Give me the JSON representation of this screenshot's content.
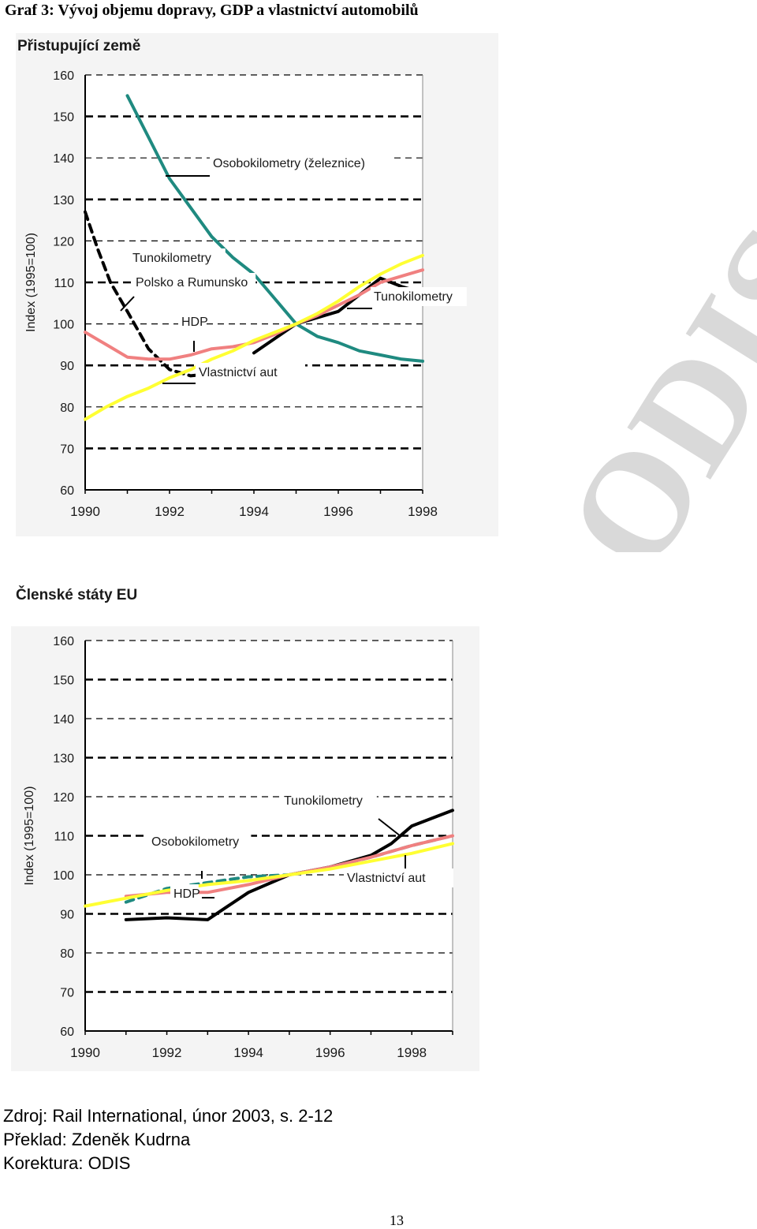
{
  "page": {
    "title": "Graf 3: Vývoj objemu dopravy, GDP a vlastnictví automobilů",
    "watermark": "ODIS",
    "source_lines": [
      "Zdroj: Rail International, únor 2003, s. 2-12",
      "Překlad: Zdeněk Kudrna",
      "Korektura: ODIS"
    ],
    "page_number": "13"
  },
  "chart_data": [
    {
      "type": "line",
      "title": "Přistupující země",
      "xlabel": "",
      "ylabel": "Index (1995=100)",
      "xlim": [
        1990,
        1998
      ],
      "ylim": [
        60,
        160
      ],
      "x_ticks": [
        "1990",
        "1992",
        "1994",
        "1996",
        "1998"
      ],
      "y_ticks": [
        "60",
        "70",
        "80",
        "90",
        "100",
        "110",
        "120",
        "130",
        "140",
        "150",
        "160"
      ],
      "grid": "dashed horizontal",
      "series": [
        {
          "name": "Osobokilometry (železnice)",
          "color": "#1f8a80",
          "dash": "solid",
          "x": [
            1991,
            1991.5,
            1992,
            1992.5,
            1993,
            1993.5,
            1994,
            1994.5,
            1995,
            1995.5,
            1996,
            1996.5,
            1997,
            1997.5,
            1998
          ],
          "y": [
            155,
            145,
            135,
            128,
            121,
            116,
            112,
            106,
            100,
            97,
            95.5,
            93.5,
            92.5,
            91.5,
            91
          ]
        },
        {
          "name": "Tunokilometry Polsko a Rumunsko",
          "color": "#000000",
          "dash": "dashed",
          "x": [
            1990,
            1990.3,
            1990.6,
            1991,
            1991.5,
            1992,
            1992.5,
            1993,
            1993.5
          ],
          "y": [
            127,
            118,
            110,
            103,
            94,
            89,
            87.5,
            88,
            90
          ]
        },
        {
          "name": "Tunokilometry",
          "color": "#000000",
          "dash": "solid",
          "x": [
            1994,
            1994.5,
            1995,
            1995.5,
            1996,
            1996.5,
            1997,
            1997.5,
            1998
          ],
          "y": [
            93,
            96.5,
            100,
            101.5,
            103,
            107,
            111,
            109,
            107.5
          ]
        },
        {
          "name": "HDP",
          "color": "#f08080",
          "dash": "solid",
          "x": [
            1990,
            1990.5,
            1991,
            1991.5,
            1992,
            1992.5,
            1993,
            1993.5,
            1994,
            1994.5,
            1995,
            1995.5,
            1996,
            1996.5,
            1997,
            1997.5,
            1998
          ],
          "y": [
            98,
            95,
            92,
            91.5,
            91.5,
            92.5,
            94,
            94.5,
            95.5,
            97.5,
            100,
            102,
            104.5,
            107,
            110,
            111.5,
            113
          ]
        },
        {
          "name": "Vlastnictví aut",
          "color": "#ffff33",
          "dash": "solid",
          "x": [
            1990,
            1990.5,
            1991,
            1991.5,
            1992,
            1992.5,
            1993,
            1993.5,
            1994,
            1994.5,
            1995,
            1995.5,
            1996,
            1996.5,
            1997,
            1997.5,
            1998
          ],
          "y": [
            77,
            80,
            82.5,
            84.5,
            87,
            89,
            91.5,
            93.5,
            96,
            98,
            100,
            102.5,
            105.5,
            109,
            112,
            114.5,
            116.5
          ]
        }
      ],
      "annotations": [
        "Osobokilometry (železnice)",
        "Tunokilometry",
        "Polsko a Rumunsko",
        "Tunokilometry",
        "HDP",
        "Vlastnictví aut"
      ]
    },
    {
      "type": "line",
      "title": "Členské státy EU",
      "xlabel": "",
      "ylabel": "Index (1995=100)",
      "xlim": [
        1990,
        1999
      ],
      "ylim": [
        60,
        160
      ],
      "x_ticks": [
        "1990",
        "1992",
        "1994",
        "1996",
        "1998"
      ],
      "y_ticks": [
        "60",
        "70",
        "80",
        "90",
        "100",
        "110",
        "120",
        "130",
        "140",
        "150",
        "160"
      ],
      "grid": "dashed horizontal",
      "series": [
        {
          "name": "Osobokilometry",
          "color": "#1f8a80",
          "dash": "dashed",
          "x": [
            1991,
            1992,
            1993,
            1994,
            1995,
            1996,
            1997,
            1998,
            1999
          ],
          "y": [
            93,
            96.5,
            98,
            99.5,
            100,
            102,
            104.5,
            107.5,
            110
          ]
        },
        {
          "name": "Tunokilometry",
          "color": "#000000",
          "dash": "solid",
          "x": [
            1991,
            1992,
            1993,
            1993.5,
            1994,
            1995,
            1996,
            1997,
            1997.5,
            1998,
            1999
          ],
          "y": [
            88.5,
            89,
            88.5,
            92,
            95.5,
            100,
            102,
            105,
            108,
            112.5,
            116.5
          ]
        },
        {
          "name": "HDP",
          "color": "#f08080",
          "dash": "solid",
          "x": [
            1991,
            1992,
            1993,
            1994,
            1995,
            1996,
            1997,
            1998,
            1999
          ],
          "y": [
            94.5,
            95.5,
            95.5,
            97.5,
            100,
            102,
            104.5,
            107.5,
            110
          ]
        },
        {
          "name": "Vlastnictví aut",
          "color": "#ffff33",
          "dash": "solid",
          "x": [
            1990,
            1991,
            1992,
            1993,
            1994,
            1995,
            1996,
            1997,
            1998,
            1999
          ],
          "y": [
            92,
            94,
            96,
            97.5,
            98.5,
            100,
            101.5,
            103.5,
            105.5,
            108
          ]
        }
      ],
      "annotations": [
        "Tunokilometry",
        "Osobokilometry",
        "HDP",
        "Vlastnictví aut"
      ]
    }
  ]
}
